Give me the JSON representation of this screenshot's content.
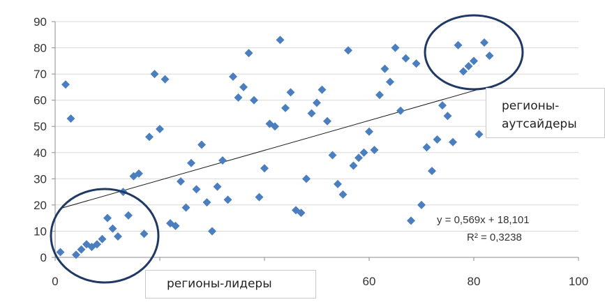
{
  "chart_data": {
    "type": "scatter",
    "xlim": [
      0,
      100
    ],
    "ylim": [
      0,
      90
    ],
    "x_ticks": [
      "0",
      "20",
      "40",
      "60",
      "80",
      "100"
    ],
    "y_ticks": [
      "0",
      "10",
      "20",
      "30",
      "40",
      "50",
      "60",
      "70",
      "80",
      "90"
    ],
    "grid": "horizontal",
    "marker": "diamond",
    "point_color": "#4a7ebf",
    "trendline": {
      "slope": 0.569,
      "intercept": 18.101,
      "x_from": 1,
      "x_to": 82
    },
    "equation": "y = 0,569x + 18,101",
    "r_squared": "R² = 0,3238",
    "points": [
      [
        1,
        2
      ],
      [
        2,
        66
      ],
      [
        3,
        53
      ],
      [
        4,
        1
      ],
      [
        5,
        3
      ],
      [
        6,
        5
      ],
      [
        7,
        4
      ],
      [
        8,
        5
      ],
      [
        9,
        7
      ],
      [
        10,
        15
      ],
      [
        11,
        11
      ],
      [
        12,
        8
      ],
      [
        13,
        25
      ],
      [
        14,
        16
      ],
      [
        15,
        31
      ],
      [
        16,
        32
      ],
      [
        17,
        9
      ],
      [
        18,
        46
      ],
      [
        19,
        70
      ],
      [
        20,
        49
      ],
      [
        21,
        68
      ],
      [
        22,
        13
      ],
      [
        23,
        12
      ],
      [
        24,
        29
      ],
      [
        25,
        19
      ],
      [
        26,
        36
      ],
      [
        27,
        26
      ],
      [
        28,
        43
      ],
      [
        29,
        21
      ],
      [
        30,
        10
      ],
      [
        31,
        27
      ],
      [
        32,
        37
      ],
      [
        33,
        22
      ],
      [
        34,
        69
      ],
      [
        35,
        61
      ],
      [
        36,
        65
      ],
      [
        37,
        78
      ],
      [
        38,
        60
      ],
      [
        39,
        23
      ],
      [
        40,
        34
      ],
      [
        41,
        51
      ],
      [
        42,
        50
      ],
      [
        43,
        83
      ],
      [
        44,
        57
      ],
      [
        45,
        63
      ],
      [
        46,
        18
      ],
      [
        47,
        17
      ],
      [
        48,
        30
      ],
      [
        49,
        55
      ],
      [
        50,
        59
      ],
      [
        51,
        64
      ],
      [
        52,
        52
      ],
      [
        53,
        39
      ],
      [
        54,
        28
      ],
      [
        55,
        24
      ],
      [
        56,
        79
      ],
      [
        57,
        35
      ],
      [
        58,
        38
      ],
      [
        59,
        40
      ],
      [
        60,
        48
      ],
      [
        61,
        41
      ],
      [
        62,
        62
      ],
      [
        63,
        72
      ],
      [
        64,
        67
      ],
      [
        65,
        80
      ],
      [
        66,
        56
      ],
      [
        67,
        76
      ],
      [
        68,
        14
      ],
      [
        69,
        74
      ],
      [
        70,
        20
      ],
      [
        71,
        42
      ],
      [
        72,
        33
      ],
      [
        73,
        45
      ],
      [
        74,
        58
      ],
      [
        75,
        54
      ],
      [
        76,
        44
      ],
      [
        77,
        81
      ],
      [
        78,
        71
      ],
      [
        79,
        73
      ],
      [
        80,
        75
      ],
      [
        81,
        47
      ],
      [
        82,
        82
      ],
      [
        83,
        77
      ]
    ],
    "annotations": {
      "leaders": "регионы-лидеры",
      "outsiders_line1": "регионы-",
      "outsiders_line2": "аутсайдеры"
    },
    "circle_color": "#1f3864"
  }
}
